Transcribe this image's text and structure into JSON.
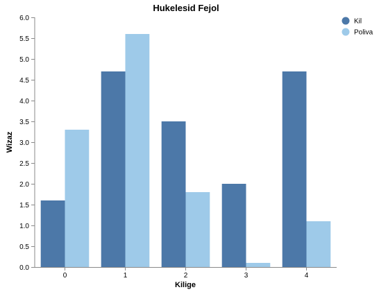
{
  "chart_data": {
    "type": "bar",
    "title": "Hukelesid Fejol",
    "xlabel": "Kilige",
    "ylabel": "Wizaz",
    "categories": [
      "0",
      "1",
      "2",
      "3",
      "4"
    ],
    "series": [
      {
        "name": "Kil",
        "color": "#4c78a8",
        "values": [
          1.6,
          4.7,
          3.5,
          2.0,
          4.7
        ]
      },
      {
        "name": "Poliva",
        "color": "#9ecae9",
        "values": [
          3.3,
          5.6,
          1.8,
          0.1,
          1.1
        ]
      }
    ],
    "ylim": [
      0,
      6
    ],
    "yticks": [
      "0.0",
      "0.5",
      "1.0",
      "1.5",
      "2.0",
      "2.5",
      "3.0",
      "3.5",
      "4.0",
      "4.5",
      "5.0",
      "5.5",
      "6.0"
    ],
    "grid": false,
    "legend_position": "top-right"
  }
}
